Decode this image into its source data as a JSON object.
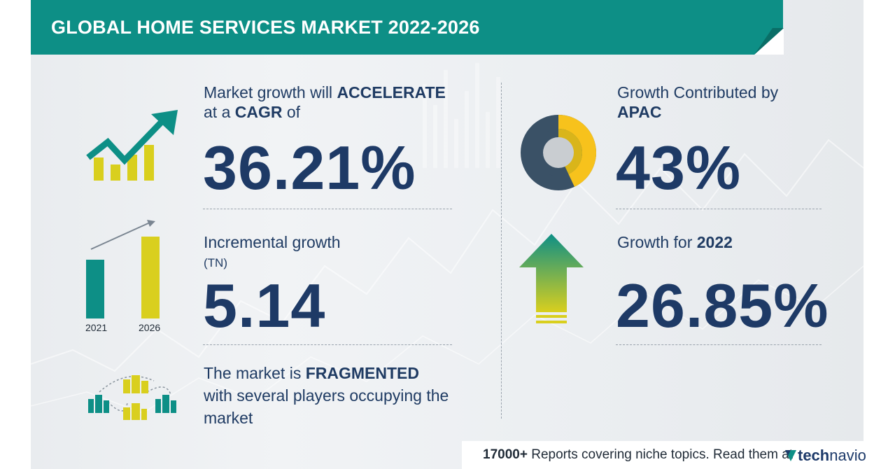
{
  "header": {
    "title": "GLOBAL HOME SERVICES MARKET 2022-2026"
  },
  "stats": {
    "cagr": {
      "line1_pre": "Market growth will ",
      "line1_bold": "ACCELERATE",
      "line2_pre": "at a ",
      "line2_bold": "CAGR",
      "line2_post": " of",
      "value": "36.21%"
    },
    "incremental": {
      "label": "Incremental growth",
      "unit": "(TN)",
      "value": "5.14",
      "year_start": "2021",
      "year_end": "2026"
    },
    "market": {
      "line1_pre": "The market is ",
      "line1_bold": "FRAGMENTED",
      "line2": "with several players occupying the",
      "line3": "market"
    },
    "region": {
      "label": "Growth Contributed by",
      "region": "APAC",
      "value": "43%",
      "share_fraction": 0.43
    },
    "yoy": {
      "label_pre": "Growth for ",
      "year": "2022",
      "value": "26.85%"
    }
  },
  "footer": {
    "count": "17000+",
    "text": " Reports covering niche topics. Read them at",
    "logo_a": "tech",
    "logo_b": "navio"
  },
  "colors": {
    "teal": "#0d8f86",
    "navy": "#1e3a66",
    "yellow": "#d9cf1e",
    "donut_dark": "#3a5166",
    "donut_yellow": "#f7c21c",
    "donut_grey": "#c9cdd1"
  }
}
